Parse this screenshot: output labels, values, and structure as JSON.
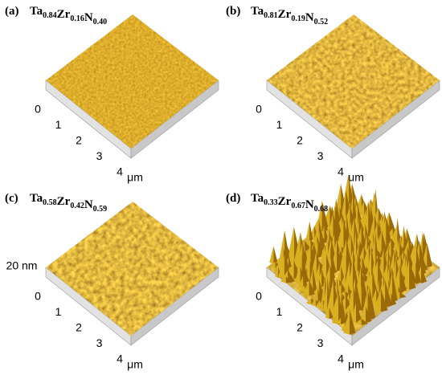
{
  "panels": [
    {
      "label": "(a)",
      "formula": [
        {
          "el": "Ta",
          "sub": "0.84"
        },
        {
          "el": "Zr",
          "sub": "0.16"
        },
        {
          "el": "N",
          "sub": "0.40"
        }
      ],
      "axis_ticks": [
        "0",
        "1",
        "2",
        "3",
        "4"
      ],
      "axis_unit": "μm"
    },
    {
      "label": "(b)",
      "formula": [
        {
          "el": "Ta",
          "sub": "0.81"
        },
        {
          "el": "Zr",
          "sub": "0.19"
        },
        {
          "el": "N",
          "sub": "0.52"
        }
      ],
      "axis_ticks": [
        "0",
        "1",
        "2",
        "3",
        "4"
      ],
      "axis_unit": "μm"
    },
    {
      "label": "(c)",
      "formula": [
        {
          "el": "Ta",
          "sub": "0.58"
        },
        {
          "el": "Zr",
          "sub": "0.42"
        },
        {
          "el": "N",
          "sub": "0.59"
        }
      ],
      "axis_ticks": [
        "0",
        "1",
        "2",
        "3",
        "4"
      ],
      "axis_unit": "μm",
      "height_label": "20 nm"
    },
    {
      "label": "(d)",
      "formula": [
        {
          "el": "Ta",
          "sub": "0.33"
        },
        {
          "el": "Zr",
          "sub": "0.67"
        },
        {
          "el": "N",
          "sub": "0.68"
        }
      ],
      "axis_ticks": [
        "0",
        "1",
        "2",
        "3",
        "4"
      ],
      "axis_unit": "μm"
    }
  ]
}
